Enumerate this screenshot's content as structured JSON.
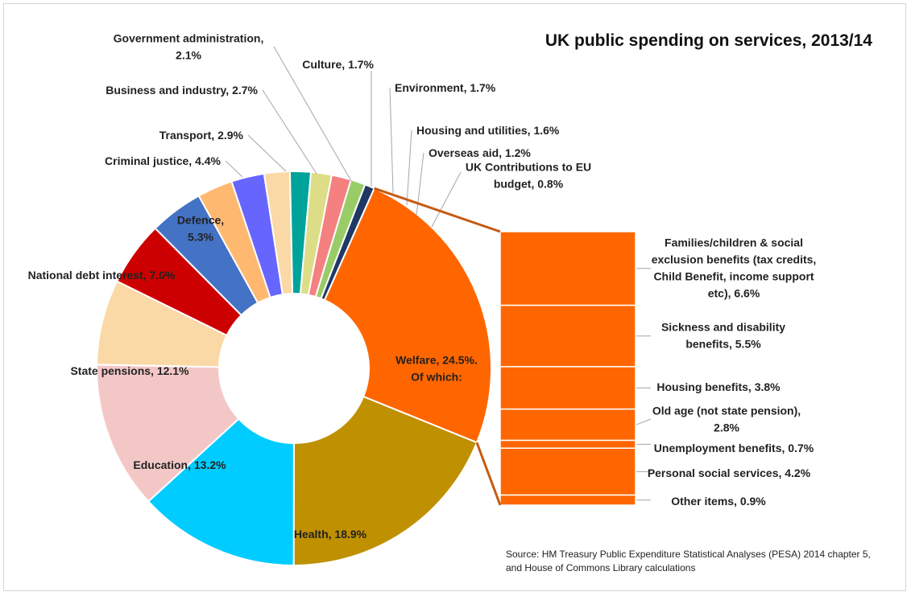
{
  "chart_data": {
    "type": "pie",
    "subtype": "donut-with-breakout-bar",
    "title": "UK public spending on services, 2013/14",
    "source": [
      "Source: HM Treasury Public Expenditure Statistical Analyses (PESA) 2014 chapter 5,",
      "and House of Commons Library calculations"
    ],
    "slices": [
      {
        "name": "Welfare",
        "value": 24.5,
        "color": "#FF6600",
        "label": [
          "Welfare, 24.5%.",
          "Of which:"
        ]
      },
      {
        "name": "Health",
        "value": 18.9,
        "color": "#BF9000",
        "label": [
          "Health, 18.9%"
        ]
      },
      {
        "name": "Education",
        "value": 13.2,
        "color": "#00CCFF",
        "label": [
          "Education, 13.2%"
        ]
      },
      {
        "name": "State pensions",
        "value": 12.1,
        "color": "#F4C7C7",
        "label": [
          "State pensions, 12.1%"
        ]
      },
      {
        "name": "National debt interest",
        "value": 7.0,
        "color": "#FAD9A6",
        "label": [
          "National debt interest, 7.0%"
        ]
      },
      {
        "name": "Defence",
        "value": 5.3,
        "color": "#CC0000",
        "label": [
          "Defence,",
          "5.3%"
        ]
      },
      {
        "name": "Criminal justice",
        "value": 4.4,
        "color": "#4472C4",
        "label": [
          "Criminal justice, 4.4%"
        ]
      },
      {
        "name": "Transport",
        "value": 2.9,
        "color": "#FFB870",
        "label": [
          "Transport, 2.9%"
        ]
      },
      {
        "name": "Business and industry",
        "value": 2.7,
        "color": "#6666FF",
        "label": [
          "Business and industry, 2.7%"
        ]
      },
      {
        "name": "Government administration",
        "value": 2.1,
        "color": "#FAD9A6",
        "label": [
          "Government administration,",
          "2.1%"
        ]
      },
      {
        "name": "Culture",
        "value": 1.7,
        "color": "#00A39A",
        "label": [
          "Culture, 1.7%"
        ]
      },
      {
        "name": "Environment",
        "value": 1.7,
        "color": "#DDDD88",
        "label": [
          "Environment, 1.7%"
        ]
      },
      {
        "name": "Housing and utilities",
        "value": 1.6,
        "color": "#F48080",
        "label": [
          "Housing and utilities, 1.6%"
        ]
      },
      {
        "name": "Overseas aid",
        "value": 1.2,
        "color": "#99CC66",
        "label": [
          "Overseas aid, 1.2%"
        ]
      },
      {
        "name": "UK Contributions to EU budget",
        "value": 0.8,
        "color": "#1F3864",
        "label": [
          "UK Contributions to EU",
          "budget, 0.8%"
        ]
      }
    ],
    "breakdown": {
      "of": "Welfare",
      "color": "#FF6600",
      "items": [
        {
          "name": "Families/children & social exclusion benefits",
          "value": 6.6,
          "label": [
            "Families/children & social",
            "exclusion benefits (tax credits,",
            "Child Benefit, income support",
            "etc), 6.6%"
          ]
        },
        {
          "name": "Sickness and disability benefits",
          "value": 5.5,
          "label": [
            "Sickness and disability",
            "benefits, 5.5%"
          ]
        },
        {
          "name": "Housing benefits",
          "value": 3.8,
          "label": [
            "Housing benefits, 3.8%"
          ]
        },
        {
          "name": "Old age (not state pension)",
          "value": 2.8,
          "label": [
            "Old age (not state pension),",
            "2.8%"
          ]
        },
        {
          "name": "Unemployment benefits",
          "value": 0.7,
          "label": [
            "Unemployment benefits, 0.7%"
          ]
        },
        {
          "name": "Personal social services",
          "value": 4.2,
          "label": [
            "Personal social services, 4.2%"
          ]
        },
        {
          "name": "Other items",
          "value": 0.9,
          "label": [
            "Other items, 0.9%"
          ]
        }
      ]
    }
  }
}
